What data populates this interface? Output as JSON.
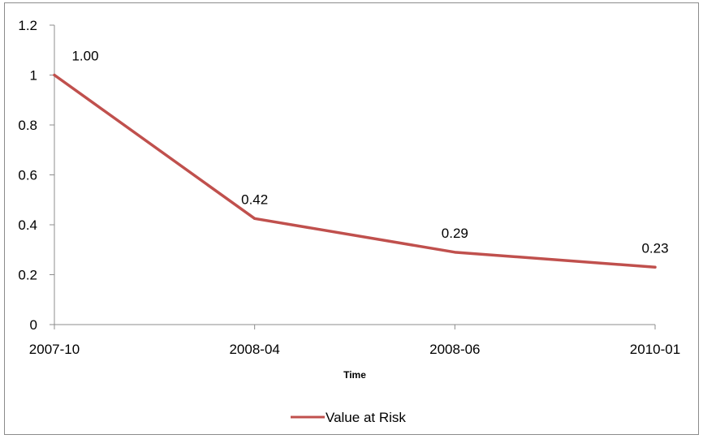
{
  "chart_data": {
    "type": "line",
    "categories": [
      "2007-10",
      "2008-04",
      "2008-06",
      "2010-01"
    ],
    "series": [
      {
        "name": "Value at Risk",
        "values": [
          1.0,
          0.425,
          0.29,
          0.23
        ],
        "data_labels": [
          "1.00",
          "0.42",
          "0.29",
          "0.23"
        ],
        "color": "#c0504d"
      }
    ],
    "xlabel": "Time",
    "ylabel": "",
    "ylim": [
      0,
      1.2
    ],
    "yticks": [
      0,
      0.2,
      0.4,
      0.6,
      0.8,
      1,
      1.2
    ],
    "ytick_labels": [
      "0",
      "0.2",
      "0.4",
      "0.6",
      "0.8",
      "1",
      "1.2"
    ],
    "grid": false,
    "legend_position": "bottom"
  }
}
